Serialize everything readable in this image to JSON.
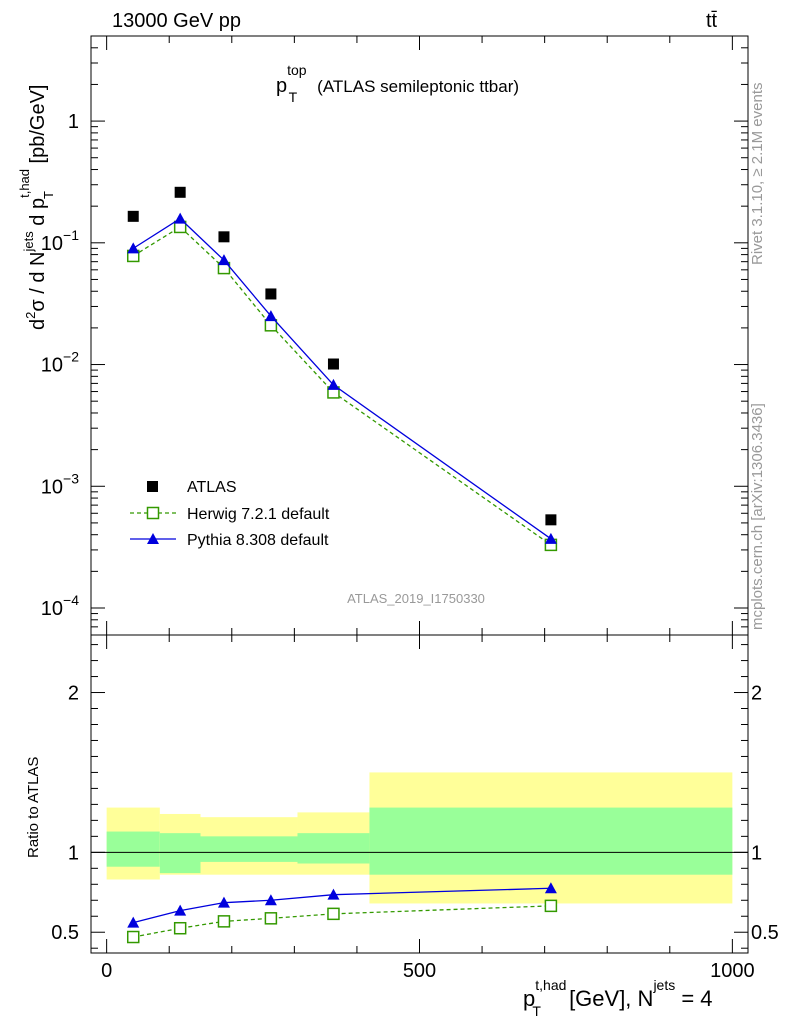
{
  "header": {
    "energy_label": "13000 GeV pp",
    "process_label": "tt̄"
  },
  "side": {
    "rivet_label": "Rivet 3.1.10, ≥ 2.1M events",
    "mcplots_label": "mcplots.cern.ch [arXiv:1306.3436]"
  },
  "chart_data": [
    {
      "type": "scatter",
      "panel": "main",
      "title_main": "p",
      "title_sup": "top",
      "title_sub": "T",
      "title_rest": "(ATLAS semileptonic ttbar)",
      "ylabel": "d²σ / d N^jets d p_T^t,had [pb/GeV]",
      "yscale": "log",
      "ylim": [
        6e-05,
        5
      ],
      "xlim": [
        -25,
        1025
      ],
      "ytick_labels": [
        {
          "value": 1,
          "mantissa": "1",
          "exp": ""
        },
        {
          "value": 0.1,
          "mantissa": "10",
          "exp": "−1"
        },
        {
          "value": 0.01,
          "mantissa": "10",
          "exp": "−2"
        },
        {
          "value": 0.001,
          "mantissa": "10",
          "exp": "−3"
        },
        {
          "value": 0.0001,
          "mantissa": "10",
          "exp": "−4"
        }
      ],
      "watermark": "ATLAS_2019_I1750330",
      "legend_position": "bottom-left",
      "series": [
        {
          "name": "ATLAS",
          "color": "#000000",
          "marker": "square-filled",
          "x": [
            42.5,
            117.5,
            187.5,
            262.5,
            362.5,
            710
          ],
          "y": [
            0.165,
            0.26,
            0.112,
            0.038,
            0.0101,
            0.00053
          ]
        },
        {
          "name": "Herwig 7.2.1 default",
          "color": "#339900",
          "marker": "square-open",
          "line": "dashed",
          "x": [
            42.5,
            117.5,
            187.5,
            262.5,
            362.5,
            710
          ],
          "y": [
            0.078,
            0.135,
            0.062,
            0.021,
            0.0059,
            0.00033
          ]
        },
        {
          "name": "Pythia 8.308 default",
          "color": "#0000dd",
          "marker": "triangle-filled",
          "line": "solid",
          "x": [
            42.5,
            117.5,
            187.5,
            262.5,
            362.5,
            710
          ],
          "y": [
            0.09,
            0.158,
            0.072,
            0.025,
            0.0068,
            0.00037
          ]
        }
      ]
    },
    {
      "type": "line",
      "panel": "ratio",
      "ylabel": "Ratio to ATLAS",
      "xlabel": "p_T^t,had [GeV], N^jets = 4",
      "ylim": [
        0.37,
        2.36
      ],
      "xlim": [
        -25,
        1025
      ],
      "xticks": [
        0,
        500,
        1000
      ],
      "xtick_labels": [
        "0",
        "500",
        "1000"
      ],
      "yticks": [
        0.5,
        1,
        2
      ],
      "ytick_labels": [
        "0.5",
        "1",
        "2"
      ],
      "bands": [
        {
          "x": [
            0,
            85
          ],
          "stat": [
            0.91,
            1.13
          ],
          "total": [
            0.83,
            1.28
          ]
        },
        {
          "x": [
            85,
            150
          ],
          "stat": [
            0.87,
            1.12
          ],
          "total": [
            0.86,
            1.24
          ]
        },
        {
          "x": [
            150,
            305
          ],
          "stat": [
            0.94,
            1.1
          ],
          "total": [
            0.86,
            1.22
          ]
        },
        {
          "x": [
            305,
            420
          ],
          "stat": [
            0.93,
            1.12
          ],
          "total": [
            0.86,
            1.25
          ]
        },
        {
          "x": [
            420,
            1000
          ],
          "stat": [
            0.86,
            1.28
          ],
          "total": [
            0.68,
            1.5
          ]
        }
      ],
      "series": [
        {
          "name": "Herwig 7.2.1 default",
          "color": "#339900",
          "marker": "square-open",
          "line": "dashed",
          "x": [
            42.5,
            117.5,
            187.5,
            262.5,
            362.5,
            710
          ],
          "y": [
            0.47,
            0.525,
            0.568,
            0.587,
            0.615,
            0.665
          ]
        },
        {
          "name": "Pythia 8.308 default",
          "color": "#0000dd",
          "marker": "triangle-filled",
          "line": "solid",
          "x": [
            42.5,
            117.5,
            187.5,
            262.5,
            362.5,
            710
          ],
          "y": [
            0.56,
            0.635,
            0.685,
            0.7,
            0.735,
            0.775
          ],
          "yerr": [
            0,
            0,
            0,
            0,
            0,
            0.025
          ]
        }
      ]
    }
  ]
}
